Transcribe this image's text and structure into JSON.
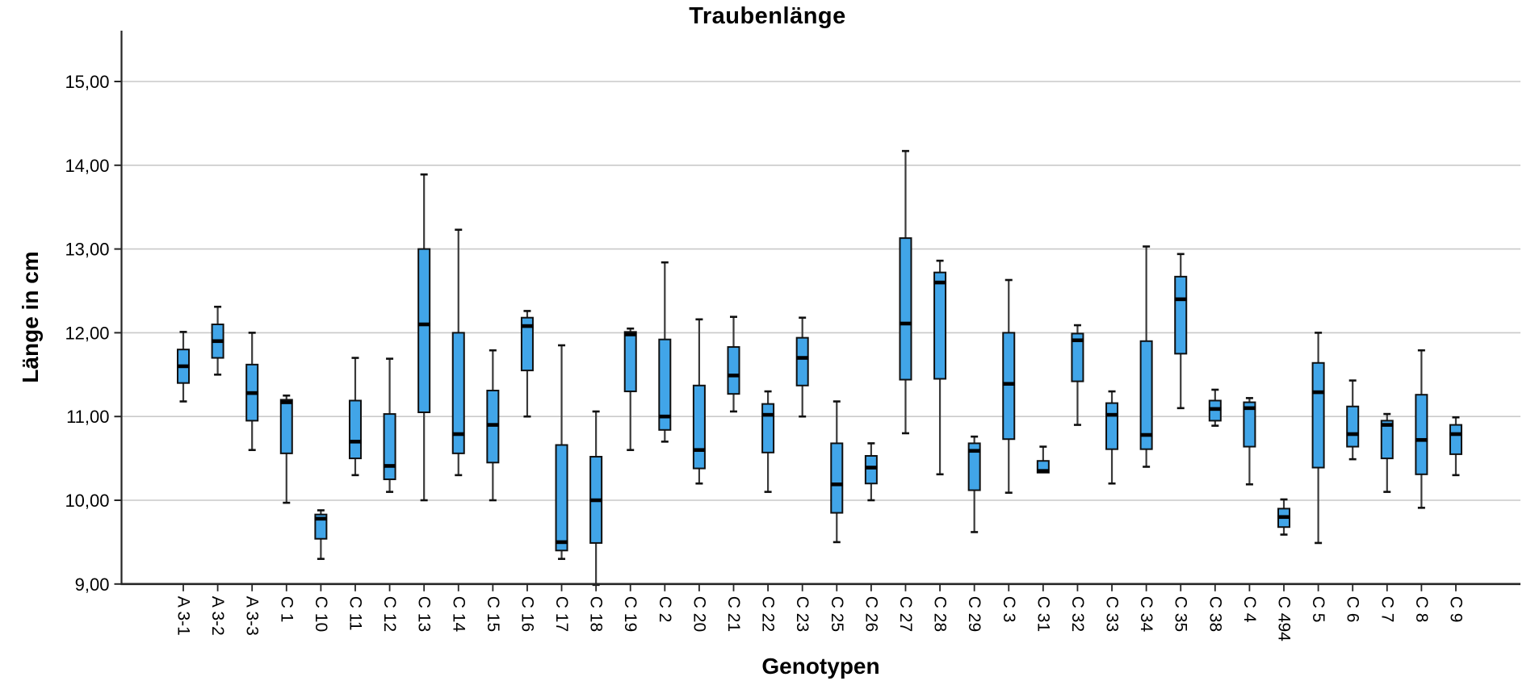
{
  "chart_data": {
    "type": "boxplot",
    "title": "Traubenlänge",
    "xlabel": "Genotypen",
    "ylabel": "Länge in cm",
    "ylim": [
      9.0,
      15.65
    ],
    "grid": true,
    "legend": "none",
    "yticks": [
      {
        "value": 9,
        "label": "9,00"
      },
      {
        "value": 10,
        "label": "10,00"
      },
      {
        "value": 11,
        "label": "11,00"
      },
      {
        "value": 12,
        "label": "12,00"
      },
      {
        "value": 13,
        "label": "13,00"
      },
      {
        "value": 14,
        "label": "14,00"
      },
      {
        "value": 15,
        "label": "15,00"
      }
    ],
    "categories": [
      "A 3-1",
      "A 3-2",
      "A 3-3",
      "C 1",
      "C 10",
      "C 11",
      "C 12",
      "C 13",
      "C 14",
      "C 15",
      "C 16",
      "C 17",
      "C 18",
      "C 19",
      "C 2",
      "C 20",
      "C 21",
      "C 22",
      "C 23",
      "C 25",
      "C 26",
      "C 27",
      "C 28",
      "C 29",
      "C 3",
      "C 31",
      "C 32",
      "C 33",
      "C 34",
      "C 35",
      "C 38",
      "C 4",
      "C 494",
      "C 5",
      "C 6",
      "C 7",
      "C 8",
      "C 9"
    ],
    "boxes": [
      {
        "label": "A 3-1",
        "min": 11.18,
        "q1": 11.4,
        "median": 11.6,
        "q3": 11.8,
        "max": 12.01
      },
      {
        "label": "A 3-2",
        "min": 11.5,
        "q1": 11.7,
        "median": 11.9,
        "q3": 12.1,
        "max": 12.31
      },
      {
        "label": "A 3-3",
        "min": 10.6,
        "q1": 10.95,
        "median": 11.28,
        "q3": 11.62,
        "max": 12.0
      },
      {
        "label": "C 1",
        "min": 9.97,
        "q1": 10.56,
        "median": 11.17,
        "q3": 11.2,
        "max": 11.25
      },
      {
        "label": "C 10",
        "min": 9.3,
        "q1": 9.54,
        "median": 9.78,
        "q3": 9.83,
        "max": 9.88
      },
      {
        "label": "C 11",
        "min": 10.3,
        "q1": 10.5,
        "median": 10.7,
        "q3": 11.19,
        "max": 11.7
      },
      {
        "label": "C 12",
        "min": 10.1,
        "q1": 10.25,
        "median": 10.41,
        "q3": 11.03,
        "max": 11.69
      },
      {
        "label": "C 13",
        "min": 10.0,
        "q1": 11.05,
        "median": 12.1,
        "q3": 13.0,
        "max": 13.89
      },
      {
        "label": "C 14",
        "min": 10.3,
        "q1": 10.56,
        "median": 10.79,
        "q3": 12.0,
        "max": 13.23
      },
      {
        "label": "C 15",
        "min": 10.0,
        "q1": 10.45,
        "median": 10.9,
        "q3": 11.31,
        "max": 11.79
      },
      {
        "label": "C 16",
        "min": 11.0,
        "q1": 11.55,
        "median": 12.08,
        "q3": 12.18,
        "max": 12.26
      },
      {
        "label": "C 17",
        "min": 9.3,
        "q1": 9.4,
        "median": 9.5,
        "q3": 10.66,
        "max": 11.85
      },
      {
        "label": "C 18",
        "min": 8.99,
        "q1": 9.49,
        "median": 10.0,
        "q3": 10.52,
        "max": 11.06
      },
      {
        "label": "C 19",
        "min": 10.6,
        "q1": 11.3,
        "median": 11.98,
        "q3": 12.01,
        "max": 12.05
      },
      {
        "label": "C 2",
        "min": 10.7,
        "q1": 10.84,
        "median": 11.0,
        "q3": 11.92,
        "max": 12.84
      },
      {
        "label": "C 20",
        "min": 10.2,
        "q1": 10.38,
        "median": 10.6,
        "q3": 11.37,
        "max": 12.16
      },
      {
        "label": "C 21",
        "min": 11.06,
        "q1": 11.27,
        "median": 11.49,
        "q3": 11.83,
        "max": 12.19
      },
      {
        "label": "C 22",
        "min": 10.1,
        "q1": 10.57,
        "median": 11.02,
        "q3": 11.15,
        "max": 11.3
      },
      {
        "label": "C 23",
        "min": 11.0,
        "q1": 11.37,
        "median": 11.7,
        "q3": 11.94,
        "max": 12.18
      },
      {
        "label": "C 25",
        "min": 9.5,
        "q1": 9.85,
        "median": 10.19,
        "q3": 10.68,
        "max": 11.18
      },
      {
        "label": "C 26",
        "min": 10.0,
        "q1": 10.2,
        "median": 10.39,
        "q3": 10.53,
        "max": 10.68
      },
      {
        "label": "C 27",
        "min": 10.8,
        "q1": 11.44,
        "median": 12.11,
        "q3": 13.13,
        "max": 14.17
      },
      {
        "label": "C 28",
        "min": 10.31,
        "q1": 11.45,
        "median": 12.6,
        "q3": 12.72,
        "max": 12.86
      },
      {
        "label": "C 29",
        "min": 9.62,
        "q1": 10.12,
        "median": 10.59,
        "q3": 10.68,
        "max": 10.76
      },
      {
        "label": "C 3",
        "min": 10.09,
        "q1": 10.73,
        "median": 11.39,
        "q3": 12.0,
        "max": 12.63
      },
      {
        "label": "C 31",
        "min": 10.31,
        "q1": 10.33,
        "median": 10.35,
        "q3": 10.47,
        "max": 10.64
      },
      {
        "label": "C 32",
        "min": 10.9,
        "q1": 11.42,
        "median": 11.91,
        "q3": 11.99,
        "max": 12.09
      },
      {
        "label": "C 33",
        "min": 10.2,
        "q1": 10.61,
        "median": 11.02,
        "q3": 11.16,
        "max": 11.3
      },
      {
        "label": "C 34",
        "min": 10.4,
        "q1": 10.61,
        "median": 10.78,
        "q3": 11.9,
        "max": 13.03
      },
      {
        "label": "C 35",
        "min": 11.1,
        "q1": 11.75,
        "median": 12.4,
        "q3": 12.67,
        "max": 12.94
      },
      {
        "label": "C 38",
        "min": 10.89,
        "q1": 10.95,
        "median": 11.09,
        "q3": 11.19,
        "max": 11.32
      },
      {
        "label": "C 4",
        "min": 10.19,
        "q1": 10.64,
        "median": 11.1,
        "q3": 11.17,
        "max": 11.22
      },
      {
        "label": "C 494",
        "min": 9.59,
        "q1": 9.68,
        "median": 9.8,
        "q3": 9.9,
        "max": 10.01
      },
      {
        "label": "C 5",
        "min": 9.49,
        "q1": 10.39,
        "median": 11.29,
        "q3": 11.64,
        "max": 12.0
      },
      {
        "label": "C 6",
        "min": 10.49,
        "q1": 10.64,
        "median": 10.79,
        "q3": 11.12,
        "max": 11.43
      },
      {
        "label": "C 7",
        "min": 10.1,
        "q1": 10.5,
        "median": 10.9,
        "q3": 10.95,
        "max": 11.03
      },
      {
        "label": "C 8",
        "min": 9.91,
        "q1": 10.31,
        "median": 10.72,
        "q3": 11.26,
        "max": 11.79
      },
      {
        "label": "C 9",
        "min": 10.3,
        "q1": 10.55,
        "median": 10.79,
        "q3": 10.9,
        "max": 10.99
      }
    ]
  },
  "colors": {
    "background": "#ffffff",
    "box_fill": "#41a5e8",
    "box_border": "#101010",
    "median": "#000000",
    "whisker": "#3a3a3a",
    "gridline": "#c9c9c9",
    "axis": "#262626",
    "text": "#000000"
  }
}
